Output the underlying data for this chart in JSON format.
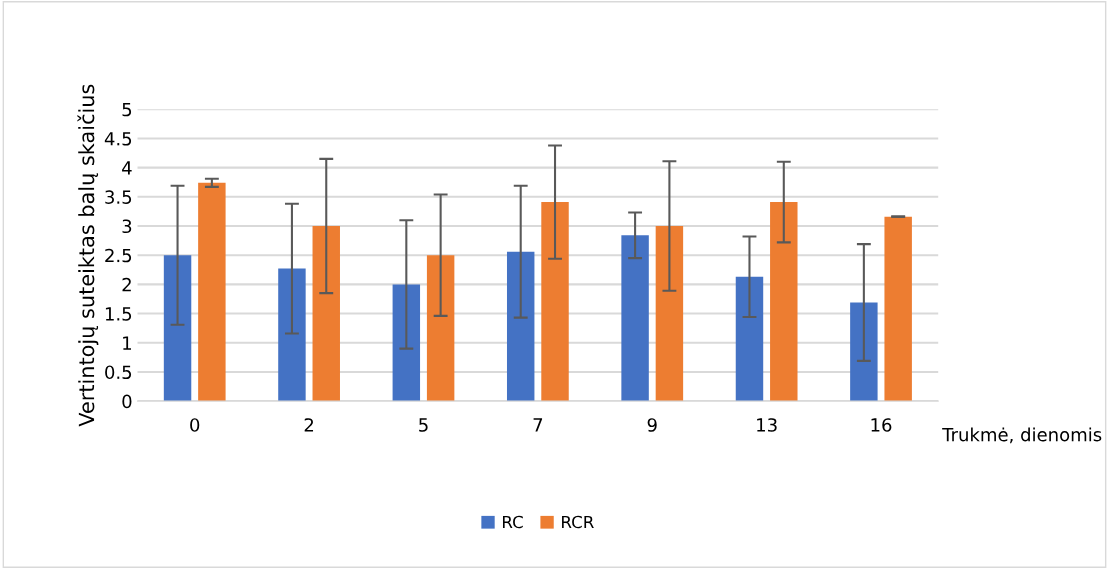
{
  "chart_data": {
    "type": "bar",
    "xlabel": "Trukmė, dienomis",
    "ylabel": "Vertintojų suteiktas balų skaičius",
    "categories": [
      "0",
      "2",
      "5",
      "7",
      "9",
      "13",
      "16"
    ],
    "series": [
      {
        "name": "RC",
        "color": "#4472c4",
        "values": [
          2.5,
          2.27,
          2.0,
          2.56,
          2.84,
          2.13,
          1.69
        ],
        "errors": [
          1.19,
          1.11,
          1.1,
          1.13,
          0.39,
          0.69,
          1.0
        ]
      },
      {
        "name": "RCR",
        "color": "#ed7d31",
        "values": [
          3.74,
          3.0,
          2.5,
          3.41,
          3.0,
          3.41,
          3.16
        ],
        "errors": [
          0.07,
          1.15,
          1.04,
          0.97,
          1.11,
          0.69,
          0.0
        ]
      }
    ],
    "ylim": [
      0,
      5
    ],
    "yticks": [
      0,
      0.5,
      1,
      1.5,
      2,
      2.5,
      3,
      3.5,
      4,
      4.5,
      5
    ],
    "grid": "y",
    "legend": "bottom"
  }
}
